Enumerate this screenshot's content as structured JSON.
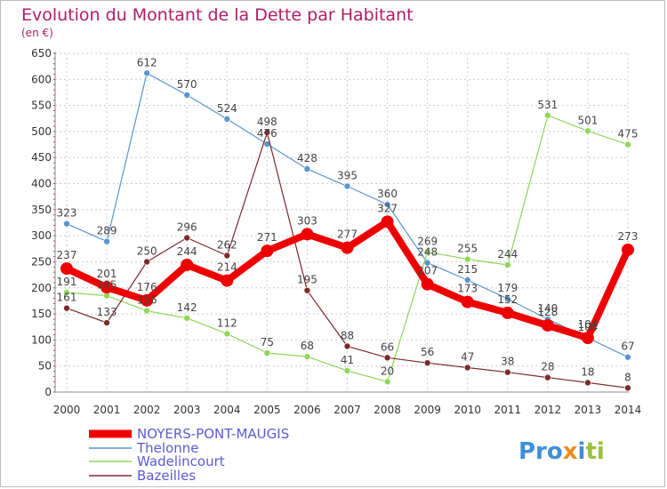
{
  "chart_data": {
    "type": "line",
    "title": "Evolution du Montant de la Dette par Habitant",
    "subtitle": "(en €)",
    "xlabel": "",
    "ylabel": "",
    "categories": [
      "2000",
      "2001",
      "2002",
      "2003",
      "2004",
      "2005",
      "2006",
      "2007",
      "2008",
      "2009",
      "2010",
      "2011",
      "2012",
      "2013",
      "2014"
    ],
    "ylim": [
      0,
      650
    ],
    "yticks": [
      0,
      50,
      100,
      150,
      200,
      250,
      300,
      350,
      400,
      450,
      500,
      550,
      600,
      650
    ],
    "grid": true,
    "legend_position": "bottom-left",
    "series": [
      {
        "name": "NOYERS-PONT-MAUGIS",
        "color": "#ee0000",
        "width": 8,
        "marker": 7,
        "values": [
          237,
          201,
          176,
          244,
          214,
          271,
          303,
          277,
          327,
          207,
          173,
          152,
          128,
          104,
          273
        ],
        "labels": [
          "237",
          "201",
          "176",
          "244",
          "214",
          "271",
          "303",
          "277",
          "327",
          "207",
          "173",
          "152",
          "128",
          "104",
          "273"
        ]
      },
      {
        "name": "Thelonne",
        "color": "#5a96cd",
        "width": 1.2,
        "marker": 3.5,
        "values": [
          323,
          289,
          612,
          570,
          524,
          476,
          428,
          395,
          360,
          248,
          215,
          179,
          140,
          104,
          67
        ],
        "labels": [
          "323",
          "289",
          "612",
          "570",
          "524",
          "476",
          "428",
          "395",
          "360",
          "248",
          "215",
          "179",
          "140",
          "104",
          "67"
        ]
      },
      {
        "name": "Wadelincourt",
        "color": "#8fd65a",
        "width": 1.2,
        "marker": 3.5,
        "values": [
          191,
          185,
          156,
          142,
          112,
          75,
          68,
          41,
          20,
          269,
          255,
          244,
          531,
          501,
          475
        ],
        "labels": [
          "191",
          "185",
          "156",
          "142",
          "112",
          "75",
          "68",
          "41",
          "20",
          "269",
          "255",
          "244",
          "531",
          "501",
          "475"
        ]
      },
      {
        "name": "Bazeilles",
        "color": "#7a2a2a",
        "width": 1.2,
        "marker": 3.5,
        "values": [
          161,
          133,
          250,
          296,
          262,
          498,
          195,
          88,
          66,
          56,
          47,
          38,
          28,
          18,
          8
        ],
        "labels": [
          "161",
          "133",
          "250",
          "296",
          "262",
          "498",
          "195",
          "88",
          "66",
          "56",
          "47",
          "38",
          "28",
          "18",
          "8"
        ]
      }
    ]
  },
  "logo": {
    "text": "Proxiti"
  }
}
